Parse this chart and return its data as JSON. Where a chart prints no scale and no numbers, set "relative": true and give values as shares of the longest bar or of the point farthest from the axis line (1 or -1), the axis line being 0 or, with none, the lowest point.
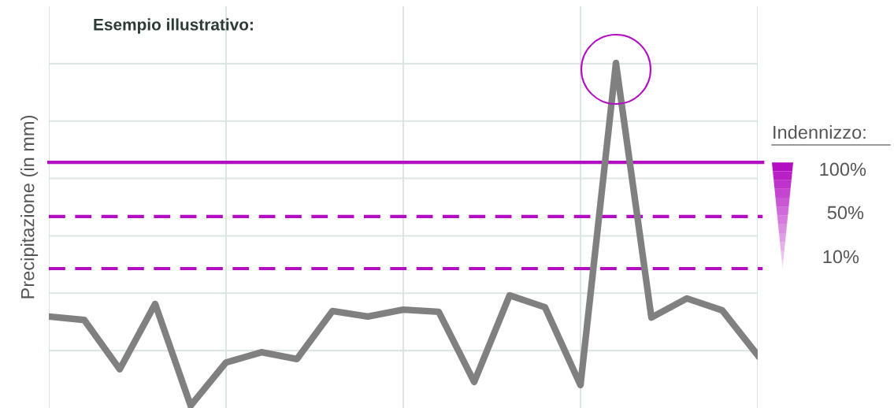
{
  "chart_data": {
    "type": "line",
    "title": "Esempio illustrativo:",
    "ylabel": "Precipitazione (in mm)",
    "legend_title": "Indennizzo:",
    "relative": true,
    "grid": true,
    "categories": [
      null,
      null,
      null,
      null,
      null,
      null,
      null,
      null,
      null,
      null,
      null,
      null,
      null,
      null,
      null,
      null,
      null,
      null,
      null,
      null,
      null
    ],
    "series": [
      {
        "color": "#808080",
        "values": [
          0.26,
          0.25,
          0.106,
          0.297,
          0,
          0.126,
          0.156,
          0.136,
          0.276,
          0.26,
          0.28,
          0.274,
          0.069,
          0.322,
          0.287,
          0.06,
          1,
          0.257,
          0.313,
          0.278,
          0.147
        ]
      }
    ],
    "annotations": [
      "100%",
      "50%",
      "10%"
    ],
    "ref_lines": [
      {
        "axis": "y",
        "value": 0.71,
        "color": "#b30fc2",
        "line_style": "solid"
      },
      {
        "axis": "y",
        "value": 0.552,
        "color": "#b30fc2",
        "line_style": "dashed"
      },
      {
        "axis": "y",
        "value": 0.4,
        "color": "#b30fc2",
        "line_style": "dashed"
      }
    ]
  }
}
